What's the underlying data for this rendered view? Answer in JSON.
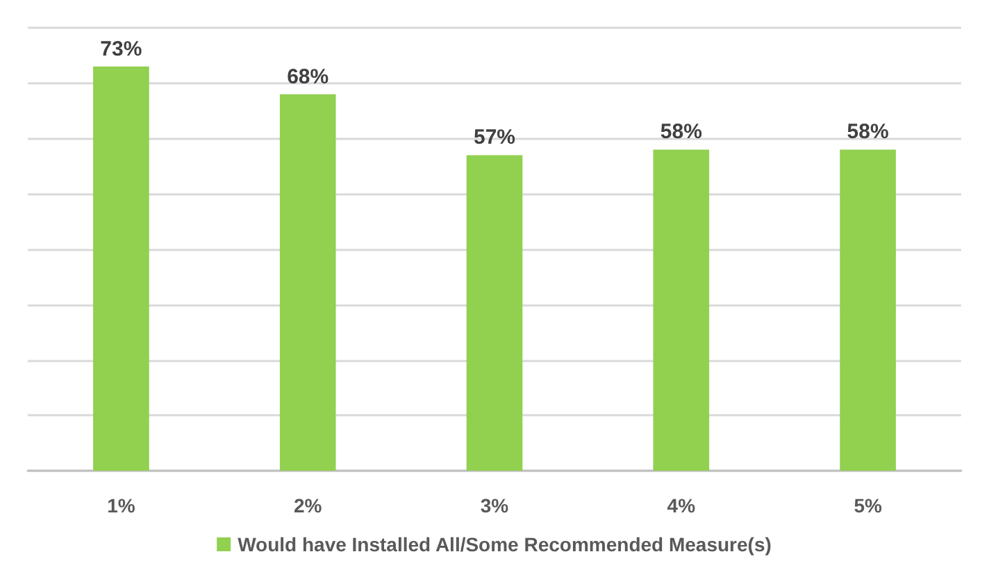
{
  "chart_data": {
    "type": "bar",
    "categories": [
      "1%",
      "2%",
      "3%",
      "4%",
      "5%"
    ],
    "series": [
      {
        "name": "Would have Installed All/Some Recommended Measure(s)",
        "color": "#92d050",
        "values": [
          73,
          68,
          57,
          58,
          58
        ],
        "value_labels": [
          "73%",
          "68%",
          "57%",
          "58%",
          "58%"
        ]
      }
    ],
    "tick_labels": "x",
    "grid": "y",
    "legend": "bottom"
  }
}
